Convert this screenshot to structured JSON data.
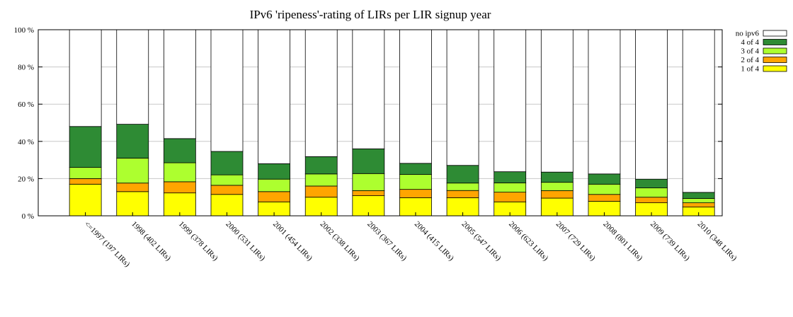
{
  "chart_data": {
    "type": "bar",
    "stacked": true,
    "title": "IPv6 'ripeness'-rating of LIRs per LIR signup year",
    "xlabel": "",
    "ylabel": "",
    "ylim": [
      0,
      100
    ],
    "yticks": [
      "0 %",
      "20 %",
      "40 %",
      "60 %",
      "80 %",
      "100 %"
    ],
    "grid": true,
    "legend_position": "top-right",
    "categories": [
      "<=1997 (197 LIRs)",
      "1998 (402 LIRs)",
      "1999 (378 LIRs)",
      "2000 (531 LIRs)",
      "2001 (454 LIRs)",
      "2002 (338 LIRs)",
      "2003 (367 LIRs)",
      "2004 (415 LIRs)",
      "2005 (547 LIRs)",
      "2006 (623 LIRs)",
      "2007 (729 LIRs)",
      "2008 (801 LIRs)",
      "2009 (739 LIRs)",
      "2010 (348 LIRs)"
    ],
    "series": [
      {
        "name": "1 of 4",
        "color": "#ffff00",
        "values": [
          17,
          13,
          12.3,
          11.5,
          7.5,
          10,
          10.8,
          9.7,
          9.7,
          7.5,
          9.5,
          7.8,
          7,
          4.7
        ]
      },
      {
        "name": "2 of 4",
        "color": "#ffa500",
        "values": [
          3,
          4.6,
          6,
          4.9,
          5.5,
          6,
          2.7,
          4.5,
          3.9,
          5.2,
          4,
          3.7,
          3,
          2.3
        ]
      },
      {
        "name": "3 of 4",
        "color": "#adff2f",
        "values": [
          6,
          13.4,
          10.2,
          5.6,
          6.7,
          6.5,
          9.2,
          8,
          4,
          5,
          4.5,
          5.5,
          5,
          2.3
        ]
      },
      {
        "name": "4 of 4",
        "color": "#2e8b34",
        "values": [
          22,
          18.2,
          13,
          12.6,
          8.3,
          9.3,
          13.3,
          6,
          9.5,
          6,
          5.5,
          5.5,
          4.7,
          3.3
        ]
      },
      {
        "name": "no ipv6",
        "color": "#ffffff",
        "values": [
          52,
          50.8,
          58.5,
          65.4,
          72,
          68.2,
          64,
          71.8,
          72.9,
          76.3,
          76.5,
          77.5,
          80.3,
          87.4
        ]
      }
    ]
  }
}
